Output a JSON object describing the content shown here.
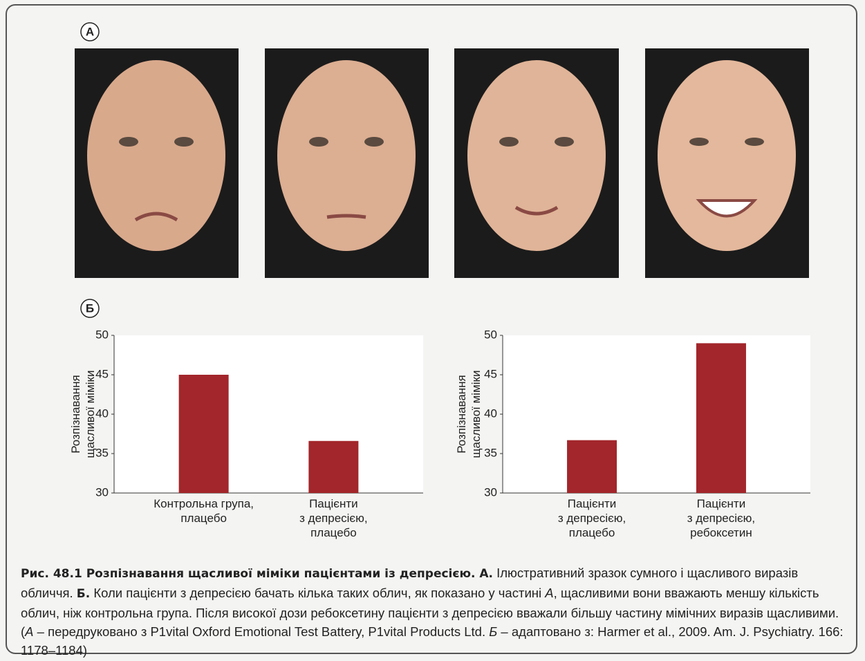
{
  "panel_labels": [
    "А",
    "Б"
  ],
  "chart_data": [
    {
      "type": "bar",
      "ylabel": "Розпізнавання\nщасливої міміки",
      "categories": [
        "Контрольна група,\nплацебо",
        "Пацієнти\nз депресією,\nплацебо"
      ],
      "values": [
        45,
        36.6
      ],
      "color": "#a2262b",
      "ylim": [
        30,
        50
      ],
      "yticks": [
        30,
        35,
        40,
        45,
        50
      ]
    },
    {
      "type": "bar",
      "ylabel": "Розпізнавання\nщасливої міміки",
      "categories": [
        "Пацієнти\nз депресією,\nплацебо",
        "Пацієнти\nз депресією,\nребоксетин"
      ],
      "values": [
        36.7,
        49
      ],
      "color": "#a2262b",
      "ylim": [
        30,
        50
      ],
      "yticks": [
        30,
        35,
        40,
        45,
        50
      ]
    }
  ],
  "caption": [
    {
      "text": "Рис. 48.1 ",
      "style": "bold"
    },
    {
      "text": "Розпізнавання щасливої міміки пацієнтами із депресією. А.",
      "style": "bold"
    },
    {
      "text": " Ілюстративний зразок сумного і щасливого виразів обличчя. ",
      "style": "normal"
    },
    {
      "text": "Б.",
      "style": "bold"
    },
    {
      "text": " Коли пацієнти з депресією бачать кілька таких облич, як показано у частині ",
      "style": "normal"
    },
    {
      "text": "А",
      "style": "italic"
    },
    {
      "text": ", щасливими вони вважають меншу кількість облич, ніж контрольна група. Після високої дози ребоксетину пацієнти з депресією вважали більшу частину мімічних виразів щасливими. (",
      "style": "normal"
    },
    {
      "text": "А",
      "style": "italic"
    },
    {
      "text": " – передруковано з P1vital Oxford Emotional Test Battery, P1vital Products Ltd. ",
      "style": "normal"
    },
    {
      "text": "Б",
      "style": "italic"
    },
    {
      "text": " – адаптовано з: Harmer et al., 2009. Am. J. Psychiatry. 166: 1178–1184)",
      "style": "normal"
    }
  ]
}
